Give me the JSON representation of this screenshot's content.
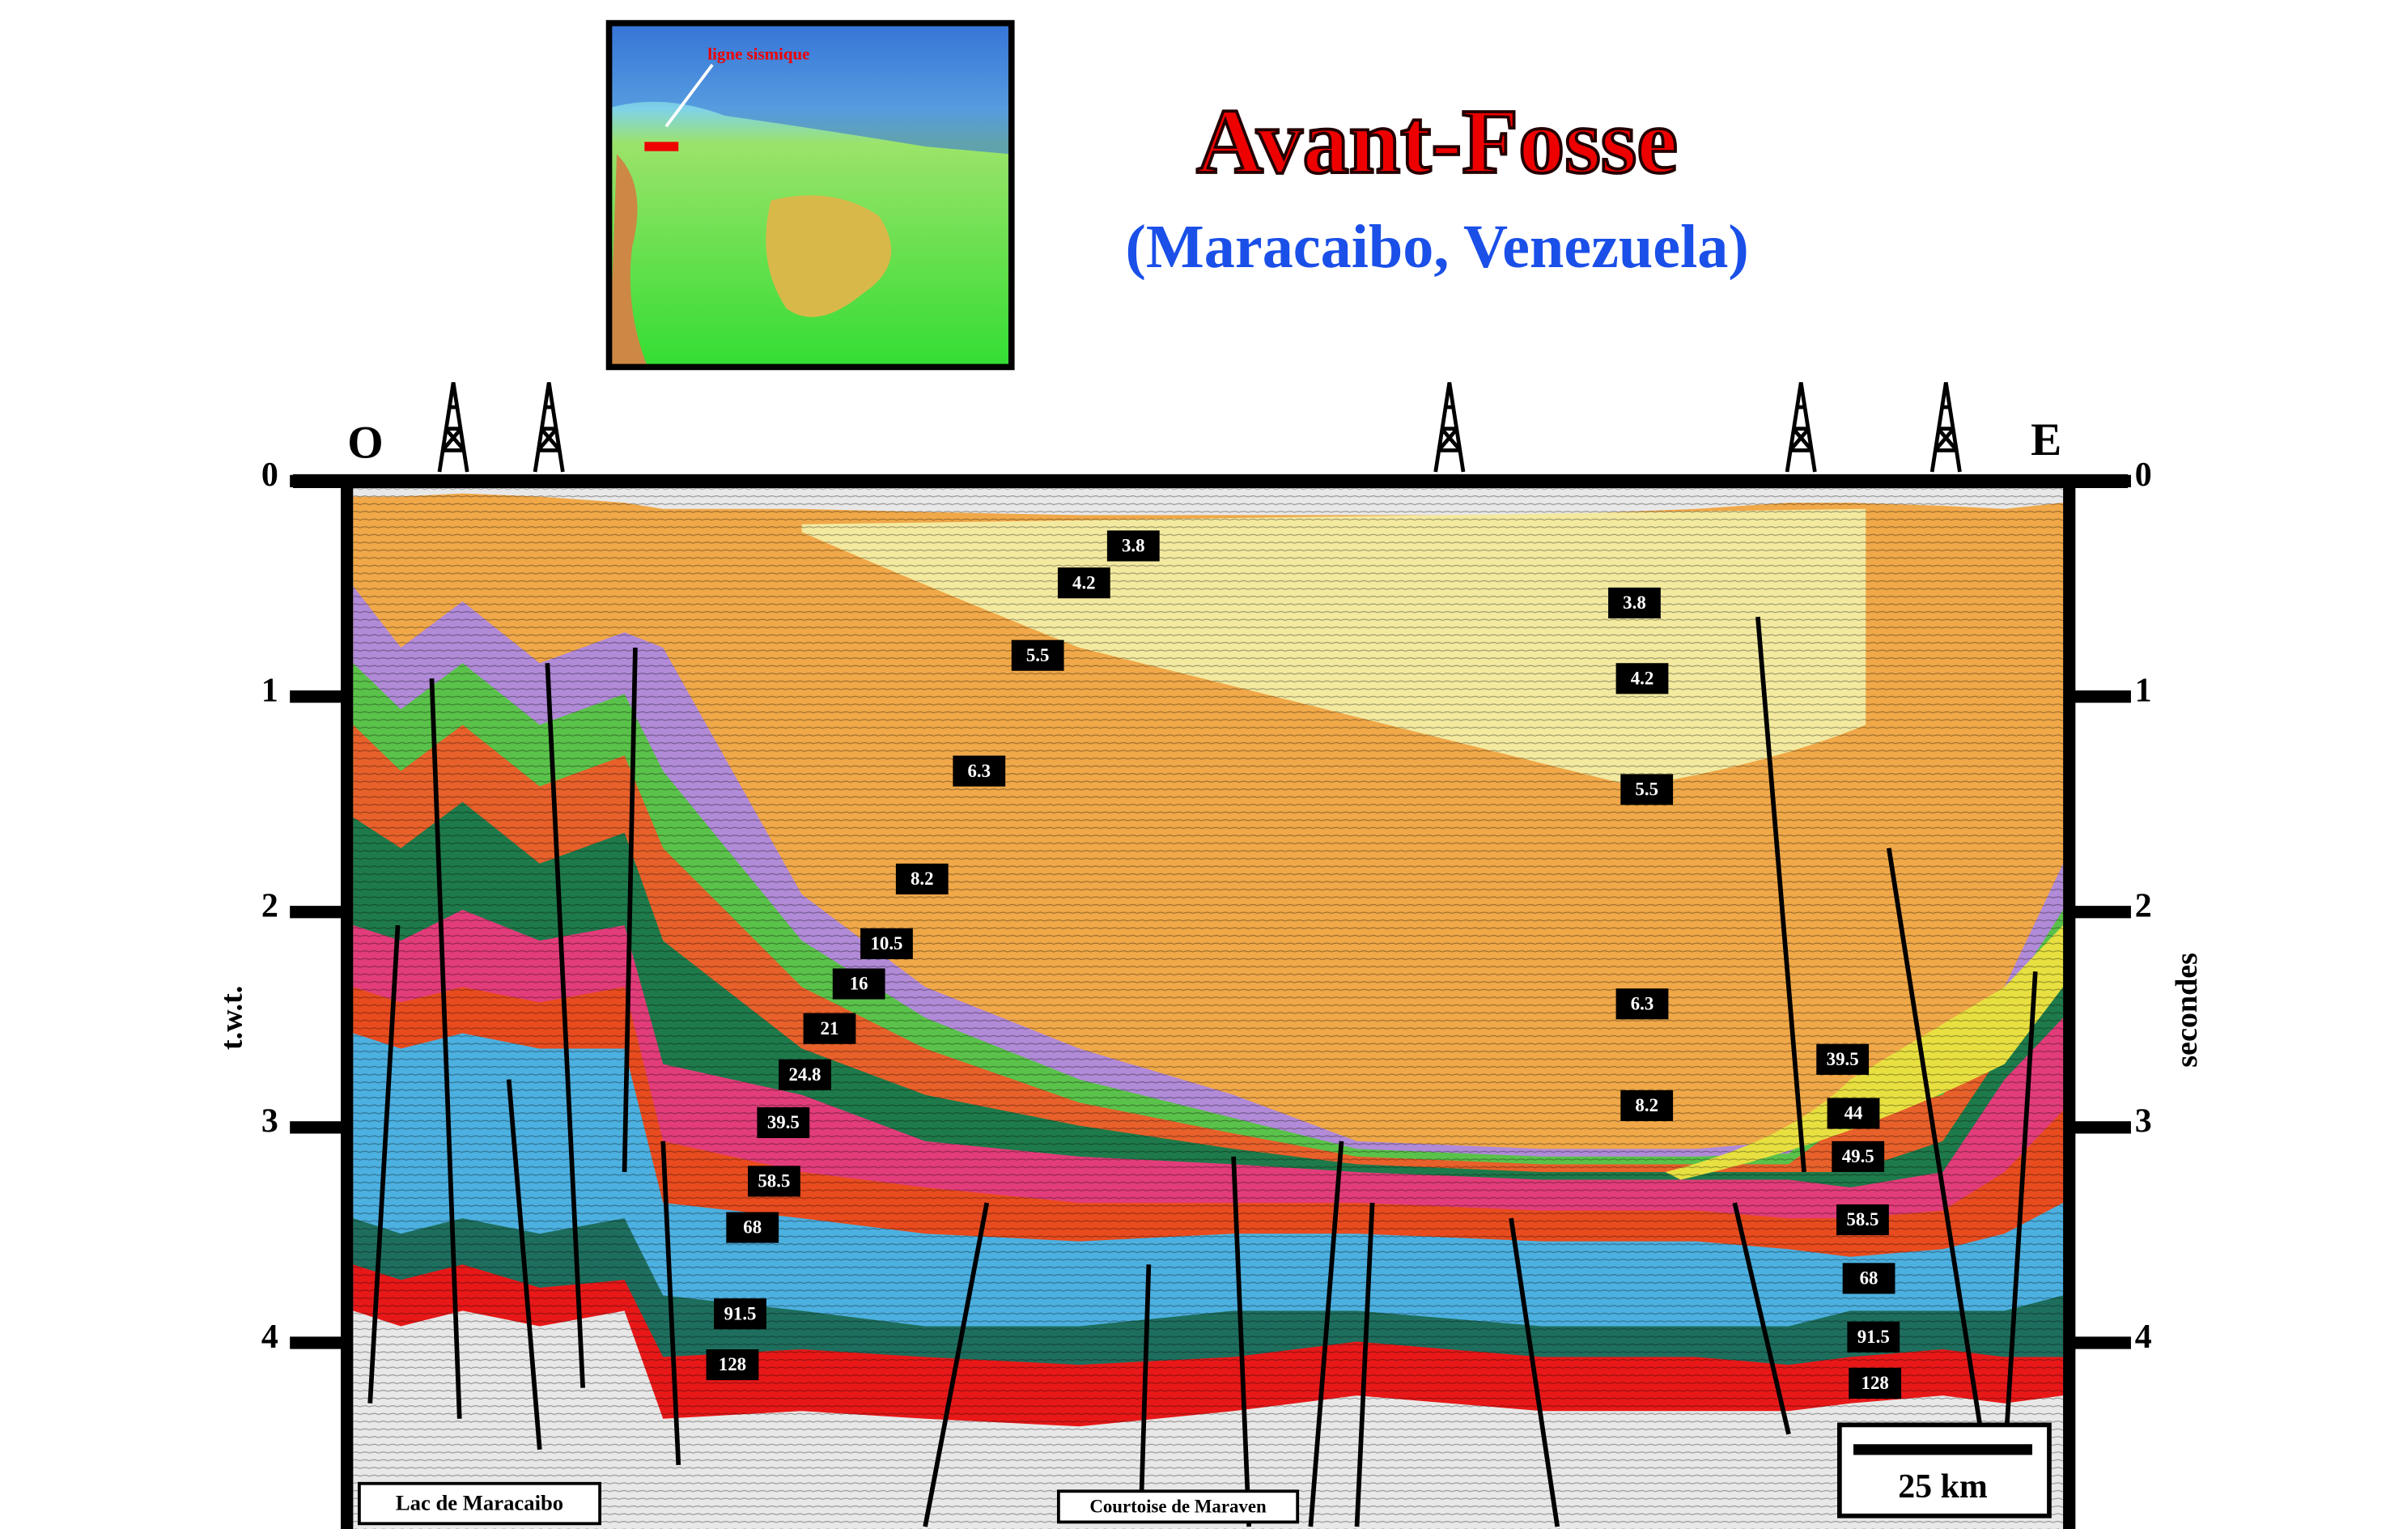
{
  "header": {
    "title": "Avant-Fosse",
    "subtitle": "(Maracaibo, Venezuela)"
  },
  "inset_map": {
    "label": "ligne sismique"
  },
  "section": {
    "west_label": "O",
    "east_label": "E",
    "left_axis": {
      "title": "t.w.t.",
      "ticks": [
        0,
        1,
        2,
        3,
        4
      ]
    },
    "right_axis": {
      "title": "secondes",
      "ticks": [
        0,
        1,
        2,
        3,
        4
      ]
    },
    "age_labels": [
      "3.8",
      "4.2",
      "5.5",
      "6.3",
      "8.2",
      "10.5",
      "16",
      "21",
      "24.8",
      "39.5",
      "58.5",
      "68",
      "91.5",
      "128",
      "3.8",
      "4.2",
      "5.5",
      "6.3",
      "8.2",
      "39.5",
      "44",
      "49.5",
      "58.5",
      "68",
      "91.5",
      "128"
    ],
    "bottom_labels": [
      "Lac de Maracaibo",
      "Courtoise de Maraven"
    ],
    "scale_bar": "25 km"
  }
}
